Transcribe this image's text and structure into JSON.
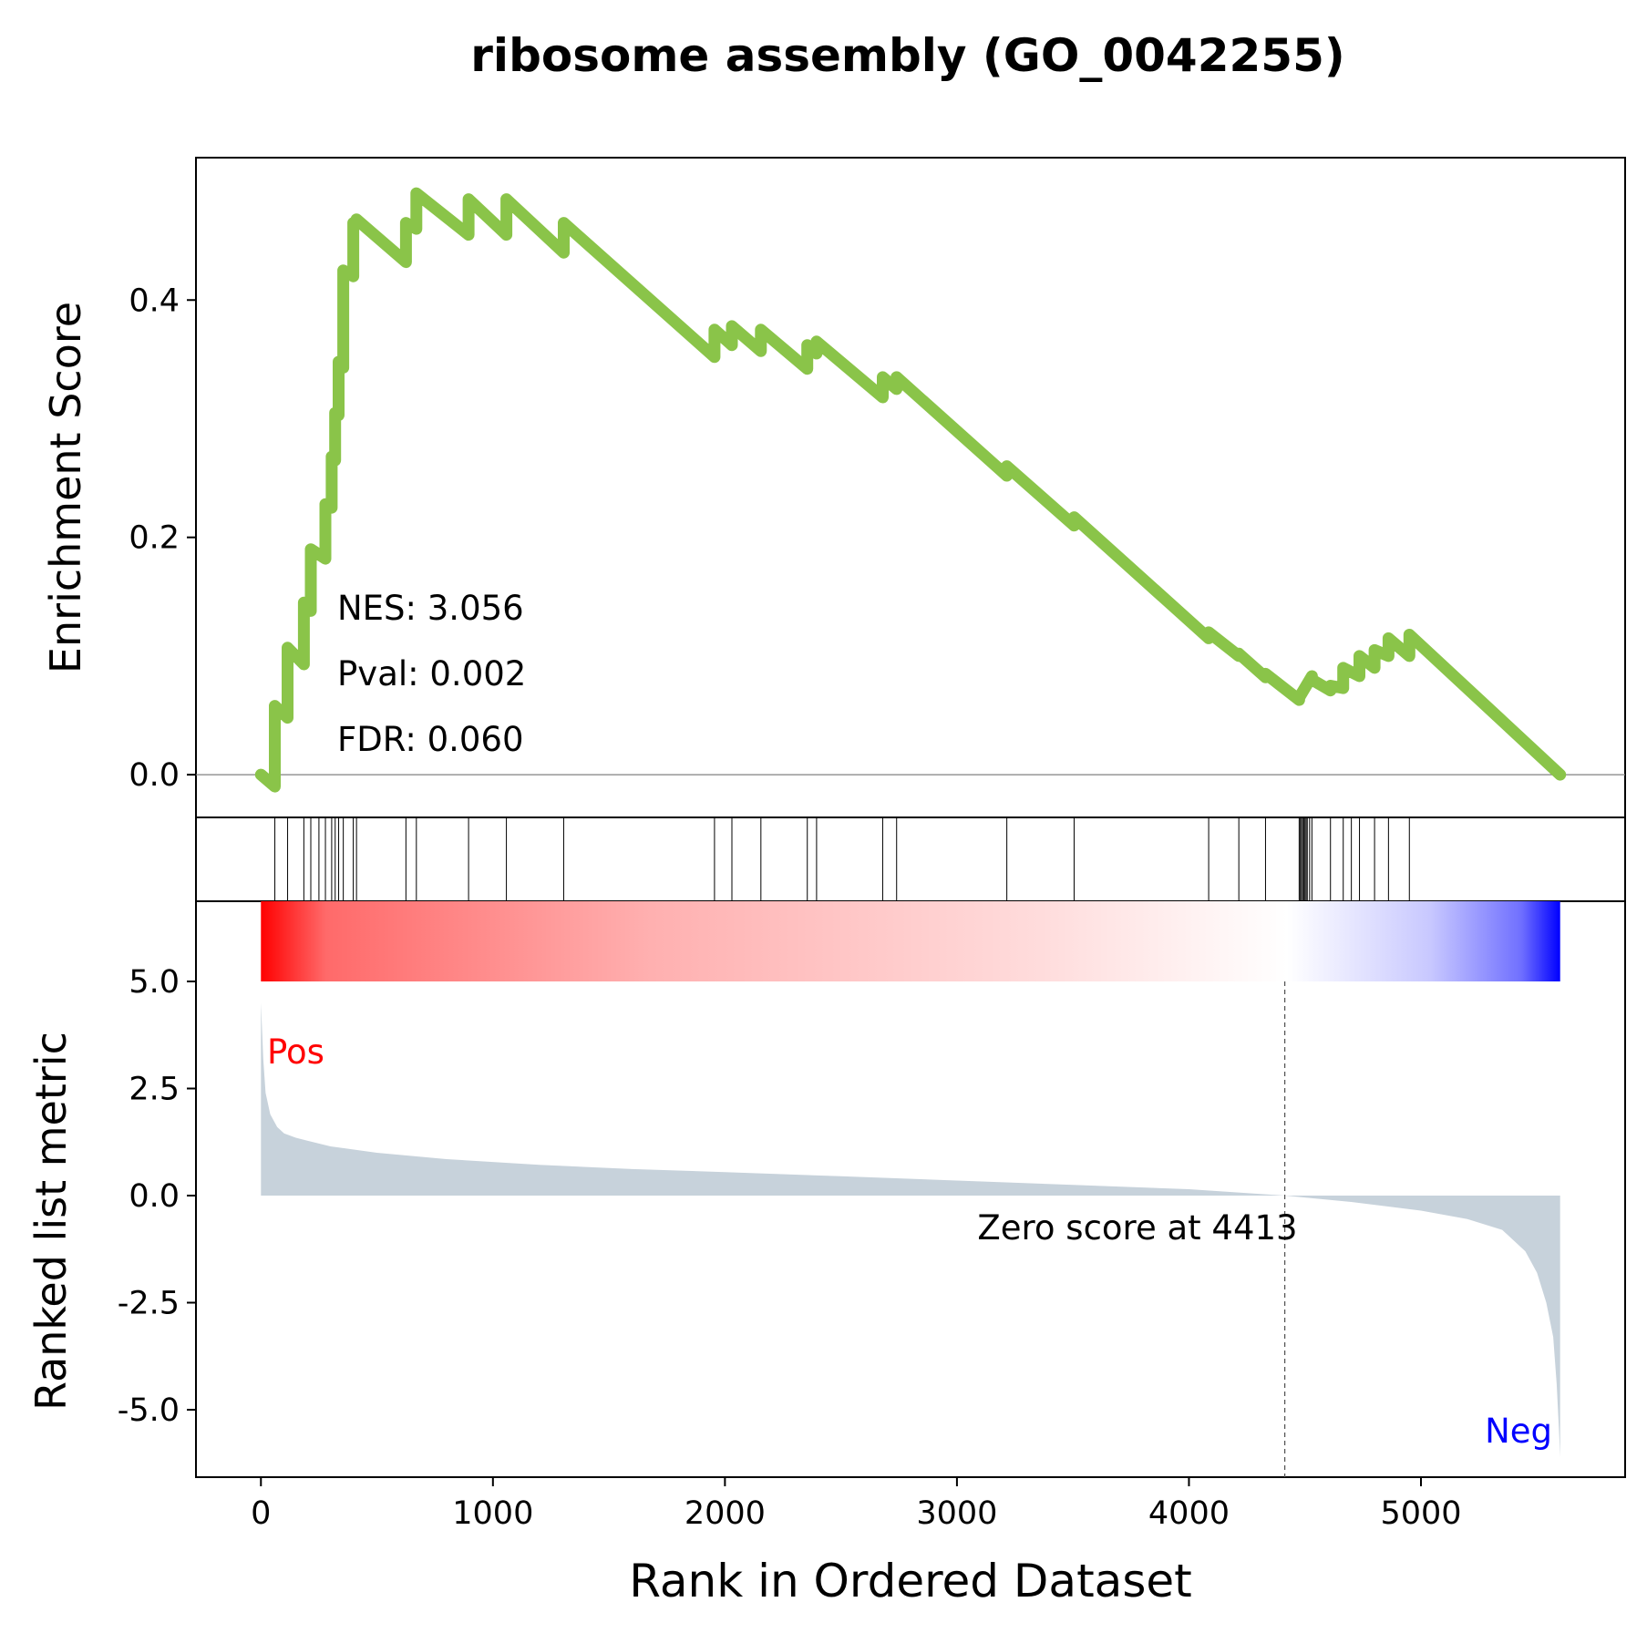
{
  "chart_data": {
    "type": "line",
    "title": "ribosome assembly (GO_0042255)",
    "xlabel": "Rank in Ordered Dataset",
    "xlim": [
      -280,
      5880
    ],
    "x_ticks": [
      0,
      1000,
      2000,
      3000,
      4000,
      5000
    ],
    "x_tick_labels": [
      "0",
      "1000",
      "2000",
      "3000",
      "4000",
      "5000"
    ],
    "enrichment_panel": {
      "ylabel": "Enrichment Score",
      "ylim": [
        -0.036,
        0.52
      ],
      "y_ticks": [
        0.0,
        0.2,
        0.4
      ],
      "y_tick_labels": [
        "0.0",
        "0.2",
        "0.4"
      ],
      "baseline": 0.0,
      "line_color": "#8ac449",
      "curve": {
        "x": [
          0,
          60,
          60,
          115,
          115,
          185,
          185,
          215,
          215,
          278,
          278,
          305,
          305,
          320,
          320,
          335,
          335,
          355,
          355,
          398,
          398,
          412,
          412,
          625,
          625,
          670,
          670,
          895,
          895,
          1058,
          1058,
          1305,
          1305,
          1955,
          1955,
          2030,
          2030,
          2155,
          2155,
          2355,
          2355,
          2395,
          2395,
          2680,
          2680,
          2740,
          2740,
          3215,
          3215,
          3505,
          3505,
          4085,
          4085,
          4215,
          4215,
          4330,
          4330,
          4475,
          4475,
          4530,
          4530,
          4610,
          4610,
          4665,
          4665,
          4735,
          4735,
          4800,
          4800,
          4860,
          4860,
          4950,
          4950,
          5600
        ],
        "y": [
          0.0,
          -0.01,
          0.058,
          0.048,
          0.107,
          0.093,
          0.145,
          0.138,
          0.19,
          0.182,
          0.228,
          0.225,
          0.268,
          0.265,
          0.305,
          0.303,
          0.348,
          0.343,
          0.425,
          0.42,
          0.465,
          0.465,
          0.468,
          0.432,
          0.465,
          0.46,
          0.49,
          0.455,
          0.485,
          0.455,
          0.485,
          0.44,
          0.465,
          0.352,
          0.375,
          0.362,
          0.378,
          0.357,
          0.375,
          0.342,
          0.362,
          0.355,
          0.365,
          0.318,
          0.335,
          0.325,
          0.335,
          0.252,
          0.26,
          0.21,
          0.217,
          0.115,
          0.12,
          0.1,
          0.102,
          0.082,
          0.085,
          0.063,
          0.065,
          0.083,
          0.08,
          0.071,
          0.075,
          0.073,
          0.09,
          0.083,
          0.1,
          0.09,
          0.105,
          0.1,
          0.115,
          0.1,
          0.118,
          0.0
        ]
      },
      "stats": [
        "NES: 3.056",
        "Pval: 0.002",
        "FDR: 0.060"
      ]
    },
    "hits_panel": {
      "positions": [
        60,
        115,
        185,
        215,
        250,
        278,
        305,
        320,
        335,
        355,
        398,
        412,
        625,
        670,
        895,
        1058,
        1305,
        1955,
        2030,
        2155,
        2355,
        2395,
        2680,
        2740,
        3215,
        3505,
        4085,
        4215,
        4330,
        4475,
        4480,
        4485,
        4490,
        4495,
        4500,
        4505,
        4510,
        4520,
        4530,
        4610,
        4665,
        4700,
        4735,
        4800,
        4860,
        4950
      ]
    },
    "ranked_panel": {
      "ylabel": "Ranked list metric",
      "ylim": [
        -6.6,
        5.0
      ],
      "y_ticks": [
        5.0,
        2.5,
        0.0,
        -2.5,
        -5.0
      ],
      "y_tick_labels": [
        "5.0",
        "2.5",
        "0.0",
        "-2.5",
        "-5.0"
      ],
      "area_color": "#c7d2db",
      "colorbar": [
        "#ff0000",
        "#ffffff",
        "#0000ff"
      ],
      "colorbar_range": [
        0,
        5600
      ],
      "zero_score_rank": 4413,
      "zero_score_label": "Zero score at 4413",
      "pos_label": "Pos",
      "neg_label": "Neg",
      "pos_color": "#ff0000",
      "neg_color": "#0000ff",
      "metric": {
        "x": [
          0,
          10,
          20,
          40,
          70,
          100,
          150,
          200,
          300,
          500,
          800,
          1200,
          1600,
          2000,
          2500,
          3000,
          3500,
          4000,
          4413,
          4700,
          5000,
          5200,
          5350,
          5450,
          5500,
          5540,
          5570,
          5585,
          5595,
          5600
        ],
        "y": [
          4.5,
          3.2,
          2.4,
          1.9,
          1.6,
          1.45,
          1.35,
          1.28,
          1.15,
          1.0,
          0.85,
          0.72,
          0.62,
          0.55,
          0.45,
          0.35,
          0.25,
          0.15,
          0.0,
          -0.15,
          -0.35,
          -0.55,
          -0.8,
          -1.3,
          -1.8,
          -2.5,
          -3.3,
          -4.4,
          -5.5,
          -6.1
        ]
      }
    }
  }
}
